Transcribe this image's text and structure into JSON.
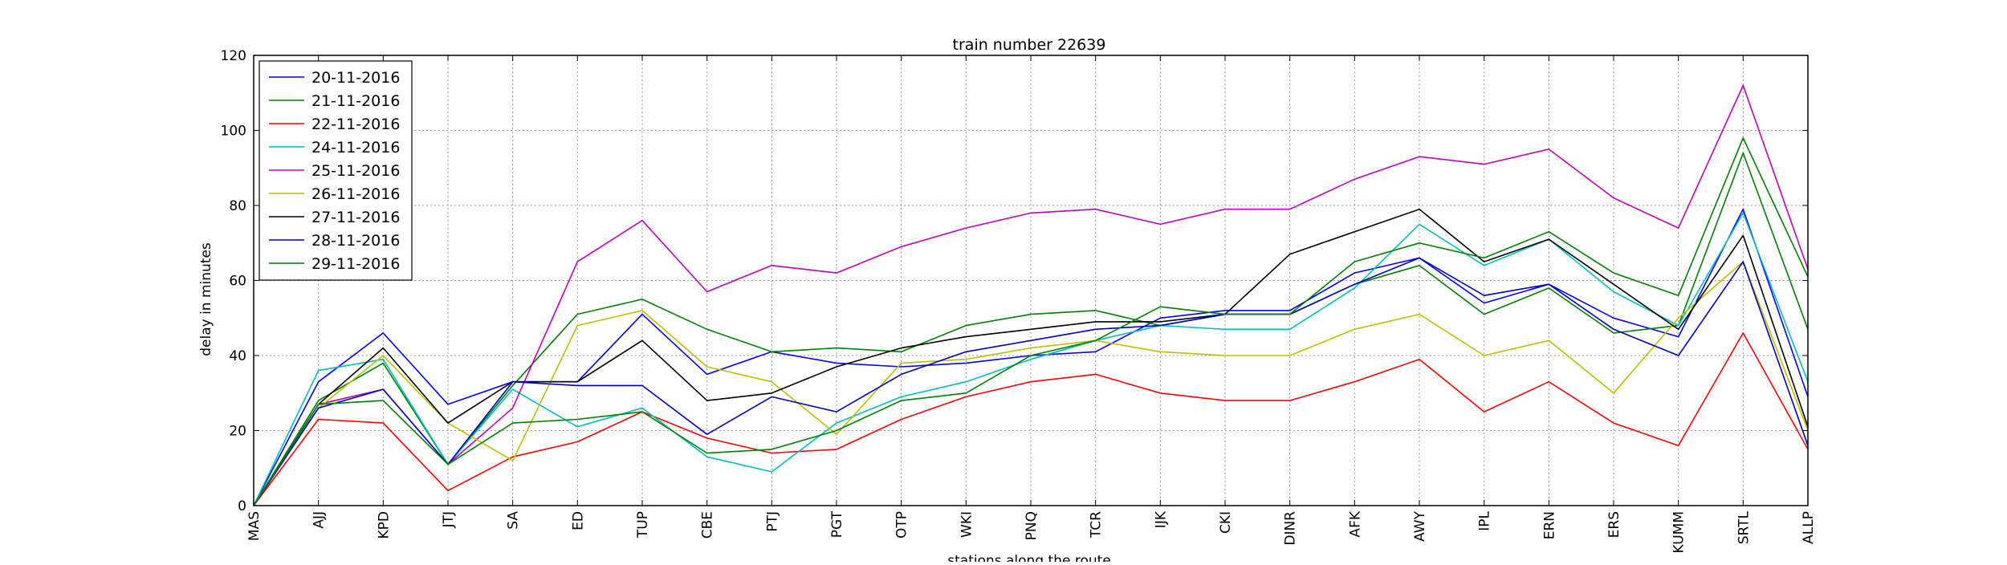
{
  "chart_data": {
    "type": "line",
    "title": "train number 22639",
    "xlabel": "stations along the route",
    "ylabel": "delay in minutes",
    "ylim": [
      0,
      120
    ],
    "yticks": [
      0,
      20,
      40,
      60,
      80,
      100,
      120
    ],
    "grid": true,
    "legend_position": "upper-left",
    "categories": [
      "MAS",
      "AJJ",
      "KPD",
      "JTJ",
      "SA",
      "ED",
      "TUP",
      "CBE",
      "PTJ",
      "PGT",
      "OTP",
      "WKI",
      "PNQ",
      "TCR",
      "IJK",
      "CKI",
      "DINR",
      "AFK",
      "AWY",
      "IPL",
      "ERN",
      "ERS",
      "KUMM",
      "SRTL",
      "ALLP"
    ],
    "series": [
      {
        "name": "20-11-2016",
        "color": "#0000ff",
        "values": [
          0,
          33,
          46,
          27,
          33,
          33,
          51,
          35,
          41,
          38,
          37,
          38,
          40,
          41,
          50,
          52,
          52,
          62,
          66,
          54,
          59,
          50,
          45,
          79,
          29
        ]
      },
      {
        "name": "21-11-2016",
        "color": "#008000",
        "values": [
          0,
          28,
          38,
          11,
          32,
          51,
          55,
          47,
          41,
          42,
          41,
          48,
          51,
          52,
          48,
          51,
          51,
          59,
          64,
          51,
          58,
          46,
          48,
          94,
          47
        ]
      },
      {
        "name": "22-11-2016",
        "color": "#ff0000",
        "values": [
          0,
          23,
          22,
          4,
          13,
          17,
          25,
          18,
          14,
          15,
          23,
          29,
          33,
          35,
          30,
          28,
          28,
          33,
          39,
          25,
          33,
          22,
          16,
          46,
          15
        ]
      },
      {
        "name": "24-11-2016",
        "color": "#00bfbf",
        "values": [
          0,
          36,
          39,
          11,
          31,
          21,
          26,
          13,
          9,
          22,
          29,
          33,
          39,
          44,
          48,
          47,
          47,
          58,
          75,
          64,
          71,
          57,
          48,
          78,
          33
        ]
      },
      {
        "name": "25-11-2016",
        "color": "#bf00bf",
        "values": [
          0,
          27,
          31,
          11,
          26,
          65,
          76,
          57,
          64,
          62,
          69,
          74,
          78,
          79,
          75,
          79,
          79,
          87,
          93,
          91,
          95,
          82,
          74,
          112,
          63
        ]
      },
      {
        "name": "26-11-2016",
        "color": "#bfbf00",
        "values": [
          0,
          26,
          40,
          22,
          12,
          48,
          52,
          37,
          33,
          19,
          38,
          39,
          42,
          44,
          41,
          40,
          40,
          47,
          51,
          40,
          44,
          30,
          50,
          65,
          20
        ]
      },
      {
        "name": "27-11-2016",
        "color": "#000000",
        "values": [
          0,
          27,
          42,
          22,
          33,
          33,
          44,
          28,
          30,
          37,
          42,
          45,
          47,
          49,
          49,
          51,
          67,
          73,
          79,
          65,
          71,
          59,
          47,
          72,
          21
        ]
      },
      {
        "name": "28-11-2016",
        "color": "#0000bf",
        "values": [
          0,
          26,
          31,
          11,
          33,
          32,
          32,
          19,
          29,
          25,
          35,
          41,
          44,
          47,
          48,
          51,
          51,
          59,
          66,
          56,
          59,
          47,
          40,
          65,
          16
        ]
      },
      {
        "name": "29-11-2016",
        "color": "#008000",
        "values": [
          0,
          27,
          28,
          11,
          22,
          23,
          25,
          14,
          15,
          20,
          28,
          30,
          40,
          44,
          53,
          51,
          51,
          65,
          70,
          66,
          73,
          62,
          56,
          98,
          61
        ]
      }
    ]
  }
}
